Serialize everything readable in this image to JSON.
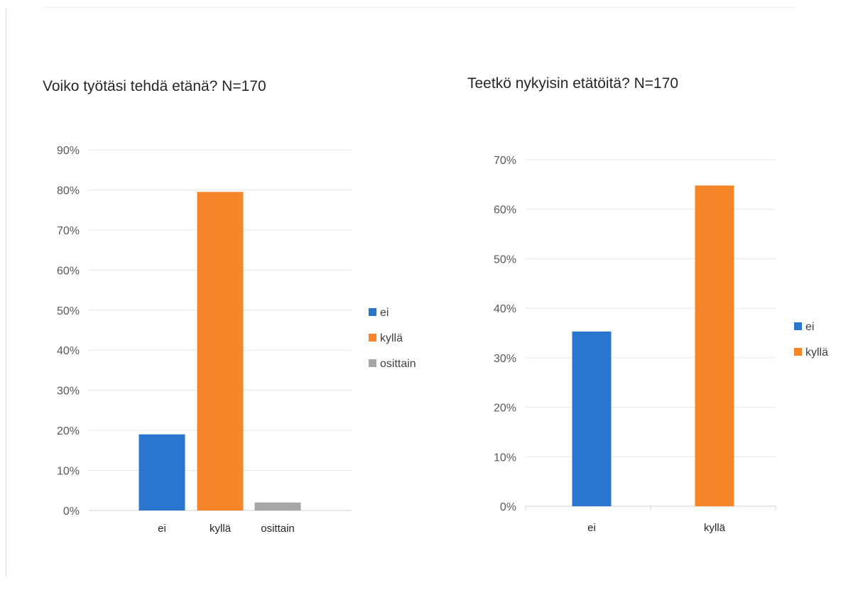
{
  "chart_data": [
    {
      "type": "bar",
      "title": "Voiko työtäsi tehdä etänä? N=170",
      "xlabel": "",
      "ylabel": "",
      "categories": [
        "ei",
        "kyllä",
        "osittain"
      ],
      "values": [
        0.19,
        0.795,
        0.02
      ],
      "colors": [
        "#2a76cf",
        "#f7862a",
        "#a6a6a6"
      ],
      "ylim": [
        0,
        0.9
      ],
      "yticks": [
        0,
        0.1,
        0.2,
        0.3,
        0.4,
        0.5,
        0.6,
        0.7,
        0.8,
        0.9
      ],
      "ytick_labels": [
        "0%",
        "10%",
        "20%",
        "30%",
        "40%",
        "50%",
        "60%",
        "70%",
        "80%",
        "90%"
      ],
      "grid": true,
      "legend": {
        "placement": "right",
        "entries": [
          {
            "label": "ei",
            "color": "#2a76cf"
          },
          {
            "label": "kyllä",
            "color": "#f7862a"
          },
          {
            "label": "osittain",
            "color": "#a6a6a6"
          }
        ]
      }
    },
    {
      "type": "bar",
      "title": "Teetkö nykyisin etätöitä? N=170",
      "xlabel": "",
      "ylabel": "",
      "categories": [
        "ei",
        "kyllä"
      ],
      "values": [
        0.353,
        0.648
      ],
      "colors": [
        "#2a76cf",
        "#f7862a"
      ],
      "ylim": [
        0,
        0.7
      ],
      "yticks": [
        0,
        0.1,
        0.2,
        0.3,
        0.4,
        0.5,
        0.6,
        0.7
      ],
      "ytick_labels": [
        "0%",
        "10%",
        "20%",
        "30%",
        "40%",
        "50%",
        "60%",
        "70%"
      ],
      "grid": true,
      "legend": {
        "placement": "right",
        "entries": [
          {
            "label": "ei",
            "color": "#2a76cf"
          },
          {
            "label": "kyllä",
            "color": "#f7862a"
          }
        ]
      }
    }
  ]
}
